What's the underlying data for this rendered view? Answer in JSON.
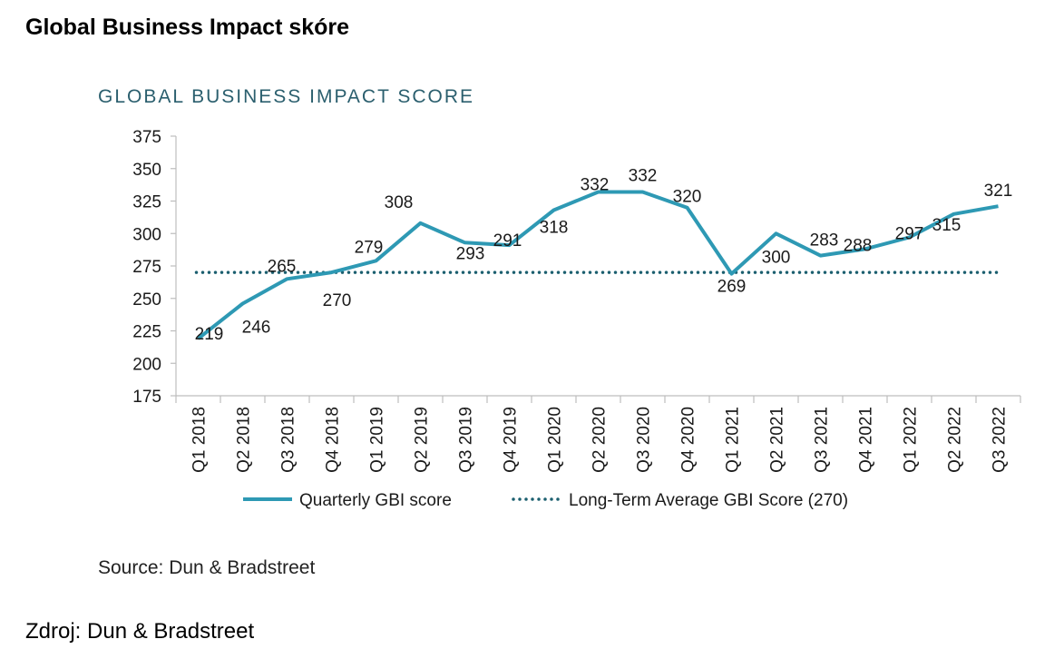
{
  "heading": "Global Business Impact skóre",
  "source_note": "Source: Dun & Bradstreet",
  "footer_source": "Zdroj: Dun & Bradstreet",
  "colors": {
    "series_line": "#2e99b4",
    "average_line": "#1b5f6f",
    "title": "#2b5f6e"
  },
  "chart_data": {
    "type": "line",
    "title": "GLOBAL BUSINESS IMPACT SCORE",
    "xlabel": "",
    "ylabel": "",
    "ylim": [
      175,
      375
    ],
    "yticks": [
      375,
      350,
      325,
      300,
      275,
      250,
      225,
      200,
      175
    ],
    "grid": false,
    "legend_position": "bottom",
    "categories": [
      "Q1 2018",
      "Q2 2018",
      "Q3 2018",
      "Q4 2018",
      "Q1 2019",
      "Q2 2019",
      "Q3 2019",
      "Q4 2019",
      "Q1 2020",
      "Q2 2020",
      "Q3 2020",
      "Q4 2020",
      "Q1 2021",
      "Q2 2021",
      "Q3 2021",
      "Q4 2021",
      "Q1 2022",
      "Q2 2022",
      "Q3 2022"
    ],
    "series": [
      {
        "name": "Quarterly GBI score",
        "style": "solid",
        "values": [
          219,
          246,
          265,
          270,
          279,
          308,
          293,
          291,
          318,
          332,
          332,
          320,
          269,
          300,
          283,
          288,
          297,
          315,
          321
        ]
      },
      {
        "name": "Long-Term Average GBI Score (270)",
        "style": "dotted",
        "values": [
          270,
          270,
          270,
          270,
          270,
          270,
          270,
          270,
          270,
          270,
          270,
          270,
          270,
          270,
          270,
          270,
          270,
          270,
          270
        ]
      }
    ]
  }
}
